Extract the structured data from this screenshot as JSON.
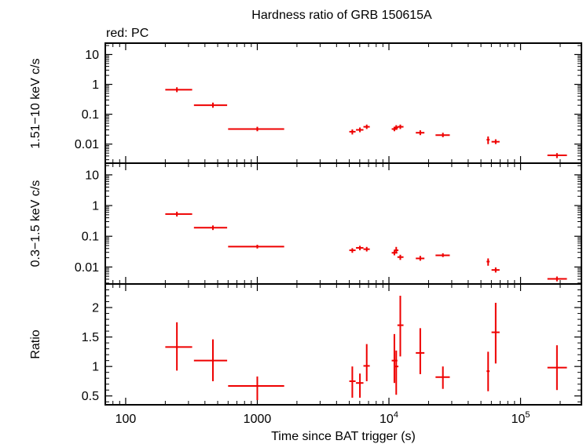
{
  "chart_data": {
    "type": "scatter",
    "title": "Hardness ratio of GRB 150615A",
    "legend": "red: PC",
    "xlabel": "Time since BAT trigger (s)",
    "x_scale": "log",
    "xlim": [
      70,
      290000
    ],
    "x_ticks": [
      {
        "value": 100,
        "label": "100",
        "sup": ""
      },
      {
        "value": 1000,
        "label": "1000",
        "sup": ""
      },
      {
        "value": 10000,
        "label": "10",
        "sup": "4"
      },
      {
        "value": 100000,
        "label": "10",
        "sup": "5"
      }
    ],
    "color": "#ee0000",
    "panels": [
      {
        "name": "hard",
        "ylabel": "1.51−10 keV c/s",
        "y_scale": "log",
        "ylim": [
          0.0023,
          24
        ],
        "y_ticks": [
          {
            "value": 10,
            "label": "10"
          },
          {
            "value": 1,
            "label": "1"
          },
          {
            "value": 0.1,
            "label": "0.1"
          },
          {
            "value": 0.01,
            "label": "0.01"
          }
        ],
        "points": [
          {
            "x": 245,
            "xlo": 200,
            "xhi": 320,
            "y": 0.66,
            "ylo": 0.55,
            "yhi": 0.8
          },
          {
            "x": 460,
            "xlo": 330,
            "xhi": 590,
            "y": 0.2,
            "ylo": 0.165,
            "yhi": 0.245
          },
          {
            "x": 1000,
            "xlo": 600,
            "xhi": 1600,
            "y": 0.032,
            "ylo": 0.027,
            "yhi": 0.038
          },
          {
            "x": 5270,
            "xlo": 5000,
            "xhi": 5580,
            "y": 0.026,
            "ylo": 0.021,
            "yhi": 0.031
          },
          {
            "x": 6020,
            "xlo": 5620,
            "xhi": 6400,
            "y": 0.03,
            "ylo": 0.025,
            "yhi": 0.036
          },
          {
            "x": 6780,
            "xlo": 6400,
            "xhi": 7150,
            "y": 0.038,
            "ylo": 0.032,
            "yhi": 0.045
          },
          {
            "x": 11000,
            "xlo": 10500,
            "xhi": 11600,
            "y": 0.032,
            "ylo": 0.027,
            "yhi": 0.038
          },
          {
            "x": 11360,
            "xlo": 10900,
            "xhi": 11800,
            "y": 0.036,
            "ylo": 0.03,
            "yhi": 0.043
          },
          {
            "x": 12200,
            "xlo": 11600,
            "xhi": 12900,
            "y": 0.038,
            "ylo": 0.032,
            "yhi": 0.045
          },
          {
            "x": 17300,
            "xlo": 16000,
            "xhi": 18600,
            "y": 0.024,
            "ylo": 0.02,
            "yhi": 0.029
          },
          {
            "x": 25700,
            "xlo": 22600,
            "xhi": 29000,
            "y": 0.02,
            "ylo": 0.017,
            "yhi": 0.024
          },
          {
            "x": 56700,
            "xlo": 55200,
            "xhi": 58200,
            "y": 0.014,
            "ylo": 0.01,
            "yhi": 0.018
          },
          {
            "x": 64700,
            "xlo": 60200,
            "xhi": 69300,
            "y": 0.012,
            "ylo": 0.01,
            "yhi": 0.0145
          },
          {
            "x": 189000,
            "xlo": 160000,
            "xhi": 225000,
            "y": 0.0042,
            "ylo": 0.0034,
            "yhi": 0.005
          }
        ]
      },
      {
        "name": "soft",
        "ylabel": "0.3−1.5 keV c/s",
        "y_scale": "log",
        "ylim": [
          0.0028,
          24
        ],
        "y_ticks": [
          {
            "value": 10,
            "label": "10"
          },
          {
            "value": 1,
            "label": "1"
          },
          {
            "value": 0.1,
            "label": "0.1"
          },
          {
            "value": 0.01,
            "label": "0.01"
          }
        ],
        "points": [
          {
            "x": 245,
            "xlo": 200,
            "xhi": 320,
            "y": 0.53,
            "ylo": 0.44,
            "yhi": 0.63
          },
          {
            "x": 460,
            "xlo": 330,
            "xhi": 590,
            "y": 0.19,
            "ylo": 0.16,
            "yhi": 0.225
          },
          {
            "x": 1000,
            "xlo": 600,
            "xhi": 1600,
            "y": 0.046,
            "ylo": 0.04,
            "yhi": 0.053
          },
          {
            "x": 5270,
            "xlo": 5000,
            "xhi": 5580,
            "y": 0.035,
            "ylo": 0.029,
            "yhi": 0.041
          },
          {
            "x": 6020,
            "xlo": 5620,
            "xhi": 6400,
            "y": 0.042,
            "ylo": 0.035,
            "yhi": 0.049
          },
          {
            "x": 6780,
            "xlo": 6400,
            "xhi": 7150,
            "y": 0.038,
            "ylo": 0.032,
            "yhi": 0.045
          },
          {
            "x": 11000,
            "xlo": 10500,
            "xhi": 11600,
            "y": 0.029,
            "ylo": 0.024,
            "yhi": 0.034
          },
          {
            "x": 11360,
            "xlo": 10900,
            "xhi": 11800,
            "y": 0.035,
            "ylo": 0.029,
            "yhi": 0.045
          },
          {
            "x": 12200,
            "xlo": 11600,
            "xhi": 12900,
            "y": 0.021,
            "ylo": 0.017,
            "yhi": 0.025
          },
          {
            "x": 17300,
            "xlo": 16000,
            "xhi": 18600,
            "y": 0.019,
            "ylo": 0.016,
            "yhi": 0.023
          },
          {
            "x": 25700,
            "xlo": 22600,
            "xhi": 29000,
            "y": 0.024,
            "ylo": 0.021,
            "yhi": 0.028
          },
          {
            "x": 56700,
            "xlo": 55200,
            "xhi": 58200,
            "y": 0.015,
            "ylo": 0.011,
            "yhi": 0.019
          },
          {
            "x": 64700,
            "xlo": 60200,
            "xhi": 69300,
            "y": 0.008,
            "ylo": 0.0066,
            "yhi": 0.0097
          },
          {
            "x": 189000,
            "xlo": 160000,
            "xhi": 225000,
            "y": 0.0041,
            "ylo": 0.0034,
            "yhi": 0.0049
          }
        ]
      },
      {
        "name": "ratio",
        "ylabel": "Ratio",
        "y_scale": "linear",
        "ylim": [
          0.35,
          2.4
        ],
        "y_ticks": [
          {
            "value": 2,
            "label": "2"
          },
          {
            "value": 1.5,
            "label": "1.5"
          },
          {
            "value": 1,
            "label": "1"
          },
          {
            "value": 0.5,
            "label": "0.5"
          }
        ],
        "minor_step": 0.1,
        "points": [
          {
            "x": 245,
            "xlo": 200,
            "xhi": 320,
            "y": 1.33,
            "ylo": 0.93,
            "yhi": 1.75
          },
          {
            "x": 460,
            "xlo": 330,
            "xhi": 590,
            "y": 1.1,
            "ylo": 0.75,
            "yhi": 1.46
          },
          {
            "x": 1000,
            "xlo": 600,
            "xhi": 1600,
            "y": 0.67,
            "ylo": 0.43,
            "yhi": 0.83
          },
          {
            "x": 5270,
            "xlo": 5000,
            "xhi": 5580,
            "y": 0.75,
            "ylo": 0.47,
            "yhi": 1.0
          },
          {
            "x": 6020,
            "xlo": 5620,
            "xhi": 6400,
            "y": 0.72,
            "ylo": 0.47,
            "yhi": 0.88
          },
          {
            "x": 6780,
            "xlo": 6400,
            "xhi": 7150,
            "y": 1.01,
            "ylo": 0.75,
            "yhi": 1.38
          },
          {
            "x": 11000,
            "xlo": 10500,
            "xhi": 11600,
            "y": 1.1,
            "ylo": 0.72,
            "yhi": 1.55
          },
          {
            "x": 11360,
            "xlo": 10900,
            "xhi": 11800,
            "y": 1.0,
            "ylo": 0.52,
            "yhi": 1.27
          },
          {
            "x": 12200,
            "xlo": 11600,
            "xhi": 12900,
            "y": 1.7,
            "ylo": 1.17,
            "yhi": 2.2
          },
          {
            "x": 17300,
            "xlo": 16000,
            "xhi": 18600,
            "y": 1.23,
            "ylo": 0.87,
            "yhi": 1.65
          },
          {
            "x": 25700,
            "xlo": 22600,
            "xhi": 29000,
            "y": 0.82,
            "ylo": 0.62,
            "yhi": 1.0
          },
          {
            "x": 56700,
            "xlo": 55200,
            "xhi": 58200,
            "y": 0.92,
            "ylo": 0.58,
            "yhi": 1.25
          },
          {
            "x": 64700,
            "xlo": 60200,
            "xhi": 69300,
            "y": 1.58,
            "ylo": 1.05,
            "yhi": 2.08
          },
          {
            "x": 189000,
            "xlo": 160000,
            "xhi": 225000,
            "y": 0.98,
            "ylo": 0.6,
            "yhi": 1.36
          }
        ]
      }
    ]
  }
}
